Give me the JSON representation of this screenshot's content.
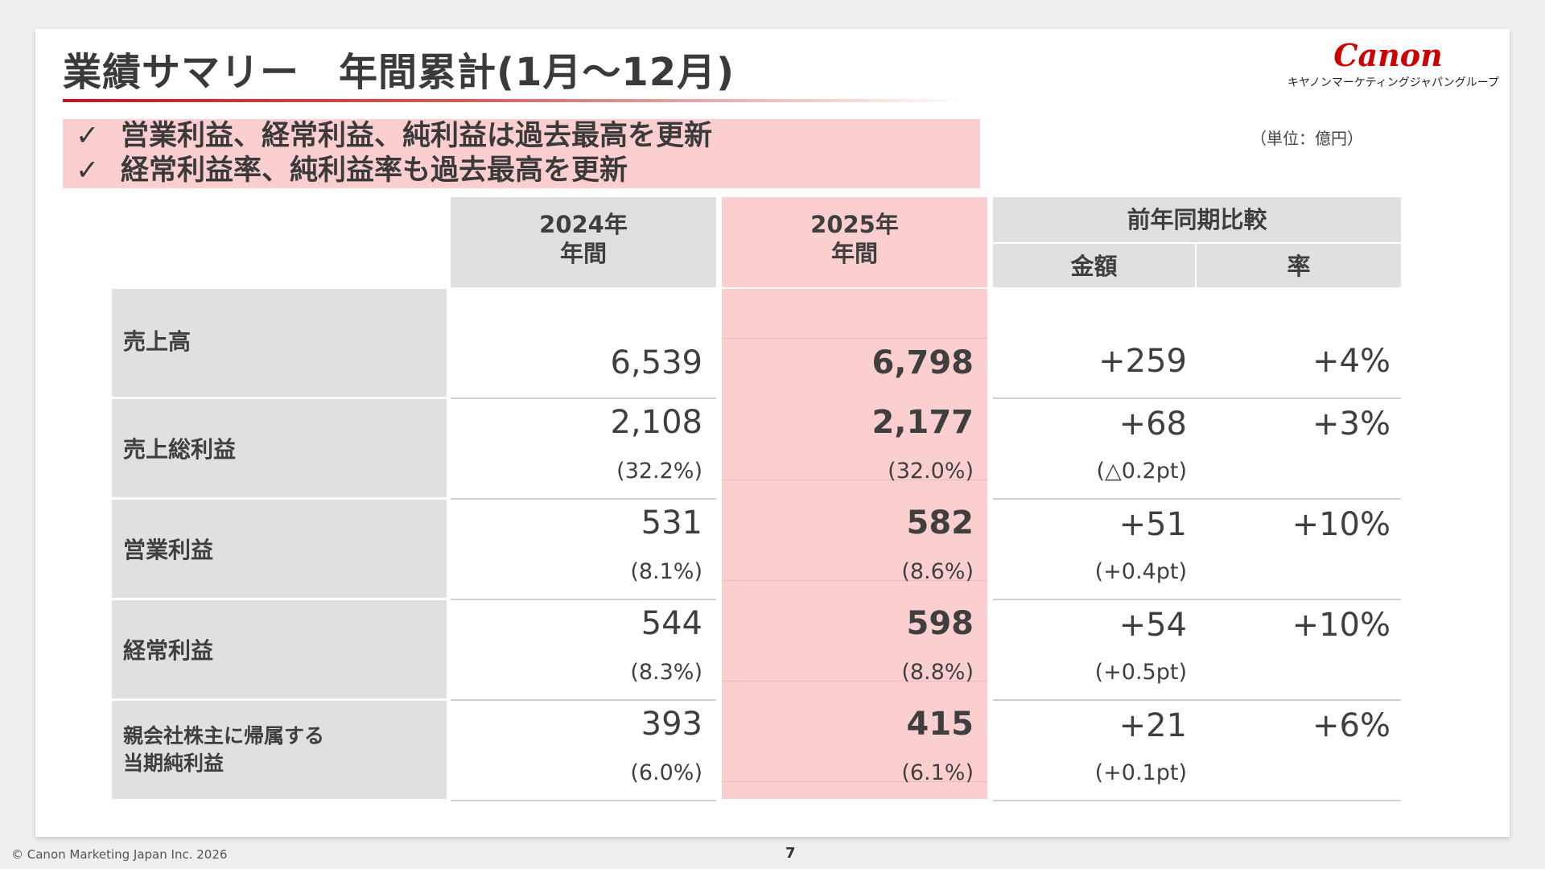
{
  "title": "業績サマリー　年間累計(1月～12月)",
  "logo": {
    "word": "Canon",
    "sub": "キヤノンマーケティングジャパングループ"
  },
  "highlights": [
    {
      "check": "✓",
      "text": "営業利益、経常利益、純利益は過去最高を更新"
    },
    {
      "check": "✓",
      "text": "経常利益率、純利益率も過去最高を更新"
    }
  ],
  "unit": "（単位：億円）",
  "table": {
    "headers": {
      "y2024": [
        "2024年",
        "年間"
      ],
      "y2025": [
        "2025年",
        "年間"
      ],
      "compare": "前年同期比較",
      "amount": "金額",
      "rate": "率"
    },
    "rows": [
      {
        "label": "売上高",
        "v2024": "6,539",
        "v2025": "6,798",
        "amount": "+259",
        "rate": "+4%"
      },
      {
        "label": "売上総利益",
        "v2024": "2,108",
        "v2024_sub": "(32.2%)",
        "v2025": "2,177",
        "v2025_sub": "(32.0%)",
        "amount": "+68",
        "amount_sub": "(△0.2pt)",
        "rate": "+3%"
      },
      {
        "label": "営業利益",
        "v2024": "531",
        "v2024_sub": "(8.1%)",
        "v2025": "582",
        "v2025_sub": "(8.6%)",
        "amount": "+51",
        "amount_sub": "(+0.4pt)",
        "rate": "+10%"
      },
      {
        "label": "経常利益",
        "v2024": "544",
        "v2024_sub": "(8.3%)",
        "v2025": "598",
        "v2025_sub": "(8.8%)",
        "amount": "+54",
        "amount_sub": "(+0.5pt)",
        "rate": "+10%"
      },
      {
        "label_lines": [
          "親会社株主に帰属する",
          "当期純利益"
        ],
        "v2024": "393",
        "v2024_sub": "(6.0%)",
        "v2025": "415",
        "v2025_sub": "(6.1%)",
        "amount": "+21",
        "amount_sub": "(+0.1pt)",
        "rate": "+6%"
      }
    ]
  },
  "footer": {
    "copyright": "© Canon Marketing Japan Inc. 2026",
    "page": "7"
  },
  "colors": {
    "accent": "#c8141e",
    "highlight": "#fbcfd0",
    "header_gray": "#e0e0e0",
    "logo_red": "#cc0000"
  }
}
